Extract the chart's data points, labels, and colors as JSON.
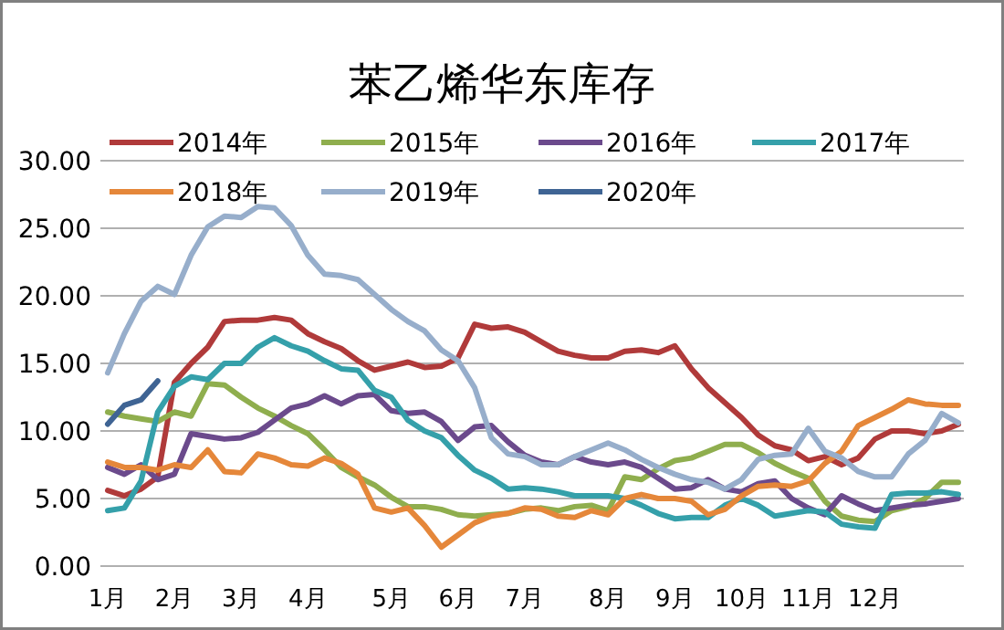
{
  "chart_data": {
    "type": "line",
    "title": "苯乙烯华东库存",
    "grid": "y",
    "legend": "top",
    "marker": "none",
    "line_style": "solid",
    "categories": [
      "1月",
      null,
      null,
      null,
      "2月",
      null,
      null,
      null,
      "3月",
      null,
      null,
      null,
      "4月",
      null,
      null,
      null,
      null,
      "5月",
      null,
      null,
      null,
      "6月",
      null,
      null,
      null,
      "7月",
      null,
      null,
      null,
      null,
      "8月",
      null,
      null,
      null,
      "9月",
      null,
      null,
      null,
      "10月",
      null,
      null,
      null,
      "11月",
      null,
      null,
      null,
      "12月",
      null,
      null,
      null,
      null,
      null
    ],
    "ylim": [
      0,
      30
    ],
    "yticks": [
      {
        "value": 0,
        "label": "0.00"
      },
      {
        "value": 5,
        "label": "5.00"
      },
      {
        "value": 10,
        "label": "10.00"
      },
      {
        "value": 15,
        "label": "15.00"
      },
      {
        "value": 20,
        "label": "20.00"
      },
      {
        "value": 25,
        "label": "25.00"
      },
      {
        "value": 30,
        "label": "30.00"
      }
    ],
    "series": [
      {
        "name": "2014年",
        "color": "#b03a3a",
        "values": [
          5.6,
          5.2,
          5.7,
          6.6,
          13.6,
          15,
          16.2,
          18.1,
          18.2,
          18.2,
          18.4,
          18.2,
          17.2,
          16.6,
          16.1,
          15.2,
          14.5,
          14.8,
          15.1,
          14.7,
          14.8,
          15.4,
          17.9,
          17.6,
          17.7,
          17.3,
          16.6,
          15.9,
          15.6,
          15.4,
          15.4,
          15.9,
          16,
          15.8,
          16.3,
          14.6,
          13.2,
          12.1,
          11,
          9.7,
          8.9,
          8.6,
          7.8,
          8.1,
          7.5,
          8,
          9.4,
          10,
          10,
          9.8,
          10,
          10.5
        ]
      },
      {
        "name": "2015年",
        "color": "#8fae4e",
        "values": [
          11.4,
          11.1,
          10.9,
          10.7,
          11.4,
          11.1,
          13.5,
          13.4,
          12.5,
          11.7,
          11.1,
          10.4,
          9.8,
          8.6,
          7.3,
          6.6,
          6,
          5.1,
          4.4,
          4.4,
          4.2,
          3.8,
          3.7,
          3.8,
          3.9,
          4.2,
          4.3,
          4.1,
          4.4,
          4.5,
          4.1,
          6.6,
          6.4,
          7.2,
          7.8,
          8,
          8.5,
          9,
          9,
          8.4,
          7.6,
          7,
          6.5,
          4.8,
          3.7,
          3.4,
          3.3,
          4.1,
          4.4,
          5,
          6.2,
          6.2
        ]
      },
      {
        "name": "2016年",
        "color": "#6b4a8c",
        "values": [
          7.3,
          6.8,
          7.5,
          6.4,
          6.8,
          9.8,
          9.6,
          9.4,
          9.5,
          9.9,
          10.8,
          11.7,
          12,
          12.6,
          12,
          12.6,
          12.7,
          11.5,
          11.3,
          11.4,
          10.7,
          9.3,
          10.3,
          10.4,
          9.2,
          8.2,
          7.7,
          7.5,
          8.1,
          7.7,
          7.5,
          7.7,
          7.3,
          6.5,
          5.7,
          5.8,
          6.4,
          5.7,
          5.5,
          6.1,
          6.3,
          5,
          4.3,
          3.8,
          5.2,
          4.6,
          4.1,
          4.3,
          4.5,
          4.6,
          4.8,
          5
        ]
      },
      {
        "name": "2017年",
        "color": "#35a0aa",
        "values": [
          4.1,
          4.3,
          6.3,
          11.4,
          13.3,
          14,
          13.8,
          15,
          15,
          16.2,
          16.9,
          16.3,
          15.9,
          15.2,
          14.6,
          14.5,
          13,
          12.5,
          10.8,
          10,
          9.5,
          8.2,
          7.1,
          6.5,
          5.7,
          5.8,
          5.7,
          5.5,
          5.2,
          5.2,
          5.2,
          5,
          4.5,
          3.9,
          3.5,
          3.6,
          3.6,
          4.5,
          5,
          4.5,
          3.7,
          3.9,
          4.1,
          4,
          3.1,
          2.9,
          2.8,
          5.3,
          5.4,
          5.4,
          5.5,
          5.3
        ]
      },
      {
        "name": "2018年",
        "color": "#e5873a",
        "values": [
          7.7,
          7.3,
          7.3,
          7.1,
          7.5,
          7.3,
          8.6,
          7,
          6.9,
          8.3,
          8,
          7.5,
          7.4,
          8,
          7.6,
          6.8,
          4.3,
          4,
          4.3,
          3,
          1.4,
          2.3,
          3.2,
          3.7,
          3.9,
          4.3,
          4.2,
          3.7,
          3.6,
          4.1,
          3.8,
          5,
          5.3,
          5,
          5,
          4.8,
          3.8,
          4.2,
          5.2,
          5.9,
          6,
          5.9,
          6.3,
          7.6,
          8.5,
          10.4,
          11,
          11.6,
          12.3,
          12,
          11.9,
          11.9
        ]
      },
      {
        "name": "2019年",
        "color": "#97aecb",
        "values": [
          14.3,
          17.2,
          19.6,
          20.7,
          20.1,
          23,
          25.1,
          25.9,
          25.8,
          26.6,
          26.5,
          25.2,
          23,
          21.6,
          21.5,
          21.2,
          20.1,
          19,
          18.1,
          17.4,
          16,
          15.2,
          13.2,
          9.5,
          8.3,
          8.1,
          7.5,
          7.5,
          8.1,
          8.6,
          9.1,
          8.6,
          7.9,
          7.3,
          6.8,
          6.4,
          6.2,
          5.7,
          6.4,
          7.9,
          8.2,
          8.3,
          10.2,
          8.5,
          8,
          7,
          6.6,
          6.6,
          8.3,
          9.3,
          11.3,
          10.6
        ]
      },
      {
        "name": "2020年",
        "color": "#3f6494",
        "values": [
          10.5,
          11.9,
          12.3,
          13.7,
          null,
          null,
          null,
          null,
          null,
          null,
          null,
          null,
          null,
          null,
          null,
          null,
          null,
          null,
          null,
          null,
          null,
          null,
          null,
          null,
          null,
          null,
          null,
          null,
          null,
          null,
          null,
          null,
          null,
          null,
          null,
          null,
          null,
          null,
          null,
          null,
          null,
          null,
          null,
          null,
          null,
          null,
          null,
          null,
          null,
          null,
          null,
          null
        ]
      }
    ]
  }
}
